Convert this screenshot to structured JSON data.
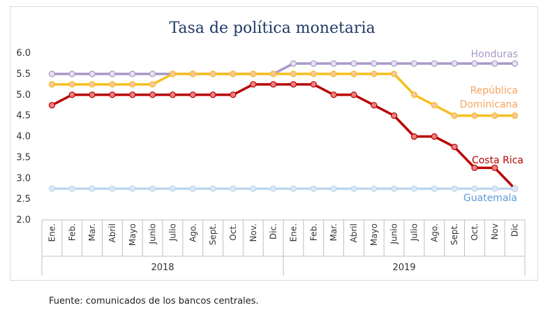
{
  "chart_data": {
    "type": "line",
    "title": "Tasa de política monetaria",
    "xlabel": "",
    "ylabel": "",
    "ylim": [
      2.0,
      6.0
    ],
    "yticks": [
      "6.0",
      "5.5",
      "5.0",
      "4.5",
      "4.0",
      "3.5",
      "3.0",
      "2.5",
      "2.0"
    ],
    "grid": false,
    "categories": [
      "Ene.",
      "Feb.",
      "Mar.",
      "Abril",
      "Mayo",
      "Junio",
      "Julio",
      "Ago.",
      "Sept.",
      "Oct.",
      "Nov.",
      "Dic.",
      "Ene.",
      "Feb.",
      "Mar.",
      "Abril",
      "Mayo",
      "Junio",
      "Julio",
      "Ago.",
      "Sept.",
      "Oct.",
      "Nov",
      "Dic"
    ],
    "year_groups": [
      {
        "label": "2018",
        "count": 12
      },
      {
        "label": "2019",
        "count": 12
      }
    ],
    "series": [
      {
        "name": "Honduras",
        "color": "#a898c8",
        "marker_fill": "#e6e1f0",
        "values": [
          5.5,
          5.5,
          5.5,
          5.5,
          5.5,
          5.5,
          5.5,
          5.5,
          5.5,
          5.5,
          5.5,
          5.5,
          5.75,
          5.75,
          5.75,
          5.75,
          5.75,
          5.75,
          5.75,
          5.75,
          5.75,
          5.75,
          5.75,
          5.75
        ]
      },
      {
        "name": "República Dominicana",
        "color": "#f5be1d",
        "marker_fill": "#f9c6a0",
        "label_color": "#f4a460",
        "values": [
          5.25,
          5.25,
          5.25,
          5.25,
          5.25,
          5.25,
          5.5,
          5.5,
          5.5,
          5.5,
          5.5,
          5.5,
          5.5,
          5.5,
          5.5,
          5.5,
          5.5,
          5.5,
          5.0,
          4.75,
          4.5,
          4.5,
          4.5,
          4.5
        ]
      },
      {
        "name": "Costa Rica",
        "color": "#b80000",
        "marker_fill": "#f08080",
        "values": [
          4.75,
          5.0,
          5.0,
          5.0,
          5.0,
          5.0,
          5.0,
          5.0,
          5.0,
          5.0,
          5.25,
          5.25,
          5.25,
          5.25,
          5.0,
          5.0,
          4.75,
          4.5,
          4.0,
          4.0,
          3.75,
          3.25,
          3.25,
          2.75
        ]
      },
      {
        "name": "Guatemala",
        "color": "#bdd7ee",
        "marker_fill": "#dbe8f5",
        "label_color": "#5b9bd5",
        "values": [
          2.75,
          2.75,
          2.75,
          2.75,
          2.75,
          2.75,
          2.75,
          2.75,
          2.75,
          2.75,
          2.75,
          2.75,
          2.75,
          2.75,
          2.75,
          2.75,
          2.75,
          2.75,
          2.75,
          2.75,
          2.75,
          2.75,
          2.75,
          2.75
        ]
      }
    ]
  },
  "source_note": "Fuente: comunicados de los bancos centrales."
}
